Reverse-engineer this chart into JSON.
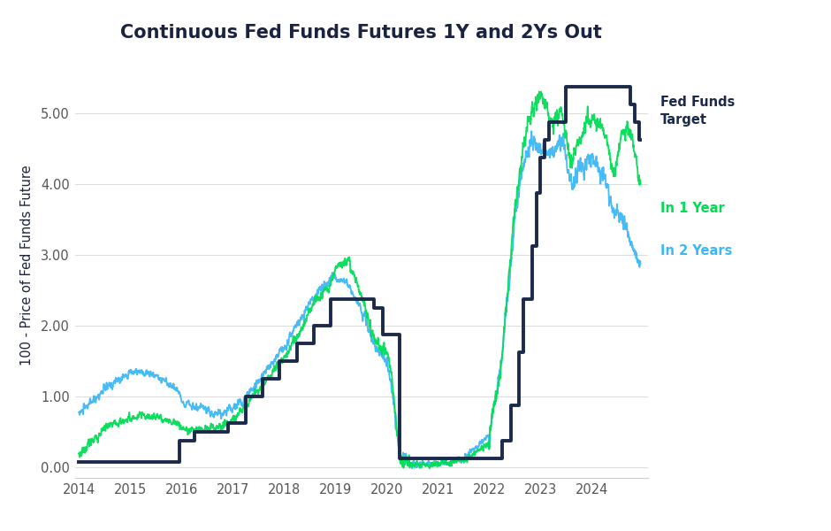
{
  "title": "Continuous Fed Funds Futures 1Y and 2Ys Out",
  "ylabel": "100 - Price of Fed Funds Future",
  "background_color": "#ffffff",
  "title_color": "#1a2340",
  "axis_label_color": "#1a2340",
  "fed_funds_color": "#1b2a4a",
  "in1y_color": "#00dd55",
  "in2y_color": "#3db8f5",
  "legend_fed_color": "#1b2a4a",
  "legend_1y_color": "#00dd55",
  "legend_2y_color": "#3db8f5",
  "fed_funds_steps_x": [
    2014.0,
    2015.958,
    2016.25,
    2016.917,
    2017.25,
    2017.583,
    2017.917,
    2018.25,
    2018.583,
    2018.917,
    2019.583,
    2019.75,
    2019.917,
    2020.25,
    2022.25,
    2022.417,
    2022.583,
    2022.667,
    2022.833,
    2022.917,
    2023.0,
    2023.083,
    2023.167,
    2023.5,
    2024.667,
    2024.75,
    2024.833,
    2024.917
  ],
  "fed_funds_steps_y": [
    0.07,
    0.375,
    0.5,
    0.625,
    1.0,
    1.25,
    1.5,
    1.75,
    2.0,
    2.375,
    2.375,
    2.25,
    1.875,
    0.125,
    0.375,
    0.875,
    1.625,
    2.375,
    3.125,
    3.875,
    4.375,
    4.625,
    4.875,
    5.375,
    5.375,
    5.125,
    4.875,
    4.625
  ],
  "ylim": [
    -0.15,
    5.85
  ],
  "xlim": [
    2013.92,
    2025.1
  ]
}
